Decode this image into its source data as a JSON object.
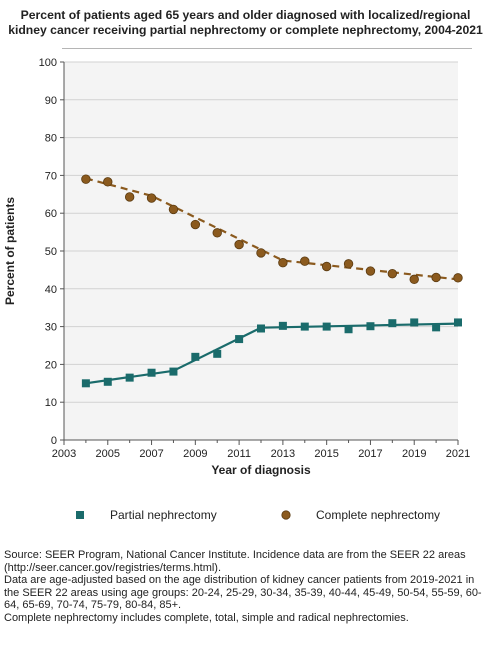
{
  "title_lines": [
    "Percent of patients aged 65 years and older diagnosed with localized/regional",
    "kidney cancer receiving partial nephrectomy or complete nephrectomy, 2004-2021"
  ],
  "chart_data": {
    "type": "line",
    "xlabel": "Year of diagnosis",
    "ylabel": "Percent of patients",
    "xlim": [
      2003,
      2021
    ],
    "ylim": [
      0,
      100
    ],
    "x_ticks": [
      2003,
      2005,
      2007,
      2009,
      2011,
      2013,
      2015,
      2017,
      2019,
      2021
    ],
    "y_ticks": [
      0,
      10,
      20,
      30,
      40,
      50,
      60,
      70,
      80,
      90,
      100
    ],
    "grid": "horizontal",
    "legend_position": "bottom",
    "x": [
      2004,
      2005,
      2006,
      2007,
      2008,
      2009,
      2010,
      2011,
      2012,
      2013,
      2014,
      2015,
      2016,
      2017,
      2018,
      2019,
      2020,
      2021
    ],
    "series": [
      {
        "name": "Partial nephrectomy",
        "color": "#1a6b6b",
        "marker": "square",
        "line_style": "solid",
        "values": [
          15.0,
          15.4,
          16.5,
          17.8,
          18.1,
          22.0,
          22.8,
          26.7,
          29.5,
          30.2,
          30.0,
          30.0,
          29.3,
          30.1,
          30.9,
          31.1,
          29.8,
          31.1
        ],
        "trend_x": [
          2004,
          2008,
          2012,
          2021
        ],
        "trend_y": [
          15.0,
          18.3,
          29.7,
          30.8
        ]
      },
      {
        "name": "Complete nephrectomy",
        "color": "#8b5a1e",
        "marker": "circle",
        "line_style": "dashed",
        "values": [
          69.0,
          68.3,
          64.3,
          64.0,
          61.0,
          57.0,
          54.8,
          51.7,
          49.5,
          46.9,
          47.3,
          45.9,
          46.6,
          44.7,
          44.0,
          42.5,
          43.0,
          42.9
        ],
        "trend_x": [
          2004,
          2007,
          2013,
          2021
        ],
        "trend_y": [
          69.2,
          64.6,
          47.5,
          42.5
        ]
      }
    ]
  },
  "notes": [
    "Source: SEER Program, National Cancer Institute. Incidence data are from the SEER 22 areas (http://seer.cancer.gov/registries/terms.html).",
    "Data are age-adjusted based on the age distribution of kidney cancer patients from 2019-2021 in the SEER 22 areas using age groups: 20-24, 25-29, 30-34, 35-39, 40-44, 45-49, 50-54, 55-59, 60-64, 65-69, 70-74, 75-79, 80-84, 85+.",
    "Complete nephrectomy includes complete, total, simple and radical nephrectomies."
  ]
}
